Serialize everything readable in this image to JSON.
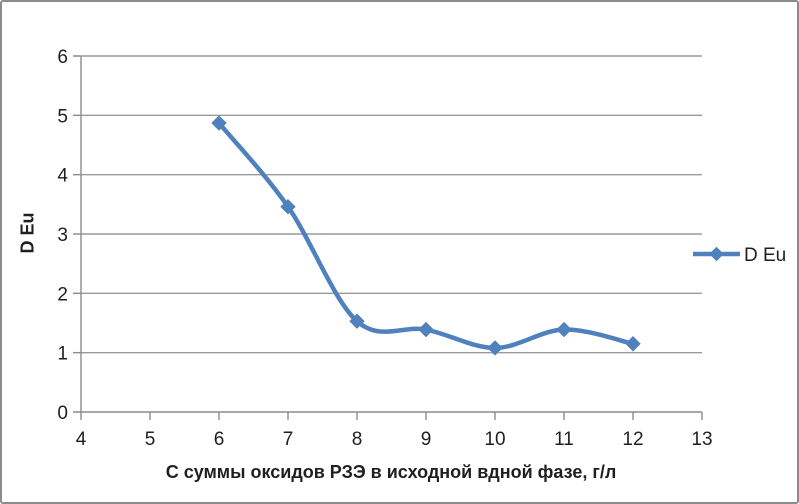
{
  "chart_data": {
    "type": "line",
    "title": "",
    "xlabel": "С суммы оксидов РЗЭ в исходной вдной фазе, г/л",
    "ylabel": "D Eu",
    "x": [
      6,
      7,
      8,
      9,
      10,
      11,
      12
    ],
    "series": [
      {
        "name": "D Eu",
        "values": [
          4.87,
          3.46,
          1.53,
          1.39,
          1.08,
          1.39,
          1.15
        ]
      }
    ],
    "xlim": [
      4,
      13
    ],
    "ylim": [
      0,
      6
    ],
    "x_ticks": [
      4,
      5,
      6,
      7,
      8,
      9,
      10,
      11,
      12,
      13
    ],
    "y_ticks": [
      0,
      1,
      2,
      3,
      4,
      5,
      6
    ],
    "grid": "horizontal",
    "smoothed": true,
    "marker": "diamond",
    "legend_position": "right",
    "colors": {
      "series": "#4F81BD",
      "gridline": "#9a9a9a",
      "axis": "#8c8c8c",
      "text": "#1f1f1f",
      "background": "#ffffff",
      "frame_border": "#8c8c8c"
    }
  },
  "legend": {
    "label": "D Eu"
  }
}
